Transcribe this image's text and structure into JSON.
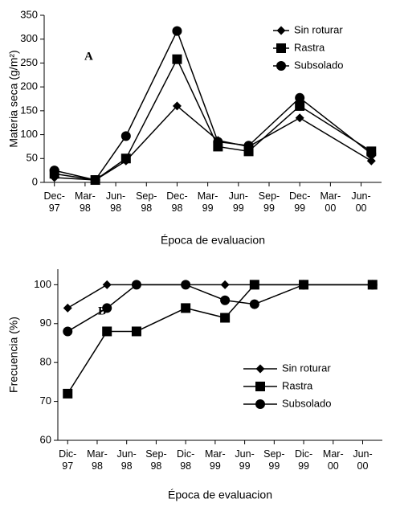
{
  "chart_data": [
    {
      "type": "line",
      "annotation": "A",
      "xlabel": "Época de evaluacion",
      "ylabel": "Materia seca (g/m²)",
      "x": [
        "1997-12",
        "1998-04",
        "1998-07",
        "1998-12",
        "1999-04",
        "1999-07",
        "1999-12",
        "2000-07"
      ],
      "xlim": [
        "1997-11",
        "2000-08"
      ],
      "xticks": [
        {
          "value": "1997-12",
          "label": "Dec-97"
        },
        {
          "value": "1998-03",
          "label": "Mar-98"
        },
        {
          "value": "1998-06",
          "label": "Jun-98"
        },
        {
          "value": "1998-09",
          "label": "Sep-98"
        },
        {
          "value": "1998-12",
          "label": "Dec-98"
        },
        {
          "value": "1999-03",
          "label": "Mar-99"
        },
        {
          "value": "1999-06",
          "label": "Jun-99"
        },
        {
          "value": "1999-09",
          "label": "Sep-99"
        },
        {
          "value": "1999-12",
          "label": "Dec-99"
        },
        {
          "value": "2000-03",
          "label": "Mar-00"
        },
        {
          "value": "2000-06",
          "label": "Jun-00"
        }
      ],
      "ylim": [
        0,
        350
      ],
      "yticks": [
        0,
        50,
        100,
        150,
        200,
        250,
        300,
        350
      ],
      "legend": "upper right",
      "series": [
        {
          "name": "Sin roturar",
          "color": "#000000",
          "marker": "diamond",
          "values": [
            10,
            5,
            45,
            160,
            88,
            75,
            135,
            45
          ]
        },
        {
          "name": "Rastra",
          "color": "#000000",
          "marker": "square",
          "values": [
            18,
            5,
            50,
            258,
            75,
            65,
            160,
            65
          ]
        },
        {
          "name": "Subsolado",
          "color": "#000000",
          "marker": "circle",
          "values": [
            25,
            5,
            97,
            317,
            85,
            77,
            177,
            60
          ]
        }
      ]
    },
    {
      "type": "line",
      "annotation": "B",
      "xlabel": "Época de evaluacion",
      "ylabel": "Frecuencia (%)",
      "x": [
        "1997-12",
        "1998-04",
        "1998-07",
        "1998-12",
        "1999-04",
        "1999-07",
        "1999-12",
        "2000-07"
      ],
      "xlim": [
        "1997-11",
        "2000-08"
      ],
      "xticks": [
        {
          "value": "1997-12",
          "label": "Dic-97"
        },
        {
          "value": "1998-03",
          "label": "Mar-98"
        },
        {
          "value": "1998-06",
          "label": "Jun-98"
        },
        {
          "value": "1998-09",
          "label": "Sep-98"
        },
        {
          "value": "1998-12",
          "label": "Dic-98"
        },
        {
          "value": "1999-03",
          "label": "Mar-99"
        },
        {
          "value": "1999-06",
          "label": "Jun-99"
        },
        {
          "value": "1999-09",
          "label": "Sep-99"
        },
        {
          "value": "1999-12",
          "label": "Dic-99"
        },
        {
          "value": "2000-03",
          "label": "Mar-00"
        },
        {
          "value": "2000-06",
          "label": "Jun-00"
        }
      ],
      "ylim": [
        60,
        104
      ],
      "yticks": [
        60,
        70,
        80,
        90,
        100
      ],
      "legend": "lower right",
      "series": [
        {
          "name": "Sin roturar",
          "color": "#000000",
          "marker": "diamond",
          "values": [
            94,
            100,
            100,
            100,
            100,
            100,
            100,
            100
          ]
        },
        {
          "name": "Rastra",
          "color": "#000000",
          "marker": "square",
          "values": [
            72,
            88,
            88,
            94,
            91.5,
            100,
            100,
            100
          ]
        },
        {
          "name": "Subsolado",
          "color": "#000000",
          "marker": "circle",
          "values": [
            88,
            94,
            100,
            100,
            96,
            95,
            100,
            100
          ]
        }
      ]
    }
  ]
}
